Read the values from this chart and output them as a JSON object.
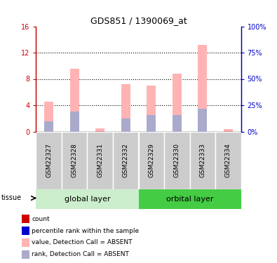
{
  "title": "GDS851 / 1390069_at",
  "samples": [
    "GSM22327",
    "GSM22328",
    "GSM22331",
    "GSM22332",
    "GSM22329",
    "GSM22330",
    "GSM22333",
    "GSM22334"
  ],
  "n_group1": 4,
  "n_group2": 4,
  "group1_label": "global layer",
  "group2_label": "orbital layer",
  "tissue_label": "tissue",
  "pink_values": [
    4.5,
    9.5,
    0.45,
    7.2,
    7.0,
    8.8,
    13.2,
    0.4
  ],
  "blue_values": [
    1.5,
    3.0,
    0.0,
    2.0,
    2.5,
    2.5,
    3.5,
    0.0
  ],
  "ylim_left": [
    0,
    16
  ],
  "ylim_right": [
    0,
    100
  ],
  "yticks_left": [
    0,
    4,
    8,
    12,
    16
  ],
  "yticks_right": [
    0,
    25,
    50,
    75,
    100
  ],
  "ytick_labels_left": [
    "0",
    "4",
    "8",
    "12",
    "16"
  ],
  "ytick_labels_right": [
    "0%",
    "25%",
    "50%",
    "75%",
    "100%"
  ],
  "pink_color": "#FFB3B3",
  "blue_color": "#AAAACC",
  "red_color": "#CC0000",
  "dark_blue_color": "#0000CC",
  "bar_width": 0.35,
  "group1_bg": "#CCEECC",
  "group2_bg": "#44CC44",
  "sample_bg": "#CCCCCC",
  "grid_yticks": [
    4,
    8,
    12
  ],
  "legend_items": [
    {
      "color": "#CC0000",
      "label": "count"
    },
    {
      "color": "#0000CC",
      "label": "percentile rank within the sample"
    },
    {
      "color": "#FFB3B3",
      "label": "value, Detection Call = ABSENT"
    },
    {
      "color": "#AAAACC",
      "label": "rank, Detection Call = ABSENT"
    }
  ]
}
